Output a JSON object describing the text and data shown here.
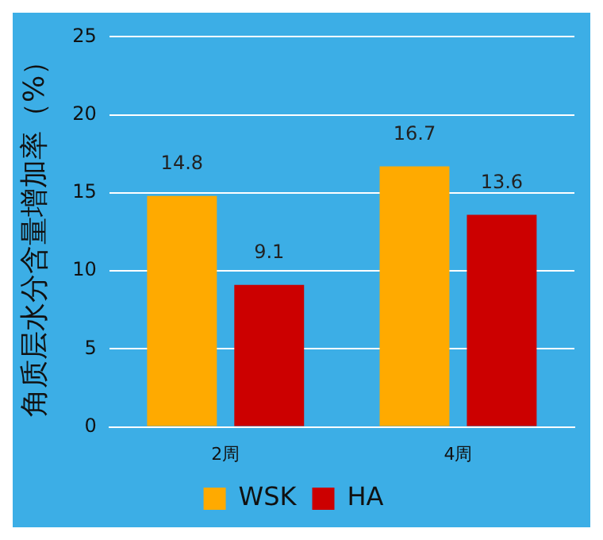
{
  "chart_data": {
    "type": "bar",
    "ylabel": "角质层水分含量增加率（%）",
    "categories": [
      "2周",
      "4周"
    ],
    "series": [
      {
        "name": "WSK",
        "color": "#ffaa00",
        "values": [
          14.8,
          16.7
        ]
      },
      {
        "name": "HA",
        "color": "#cc0000",
        "values": [
          9.1,
          13.6
        ]
      }
    ],
    "ylim": [
      0,
      25
    ],
    "yticks": [
      0,
      5,
      10,
      15,
      20,
      25
    ],
    "grid": "y",
    "legend": "bottom",
    "data_labels": true
  }
}
